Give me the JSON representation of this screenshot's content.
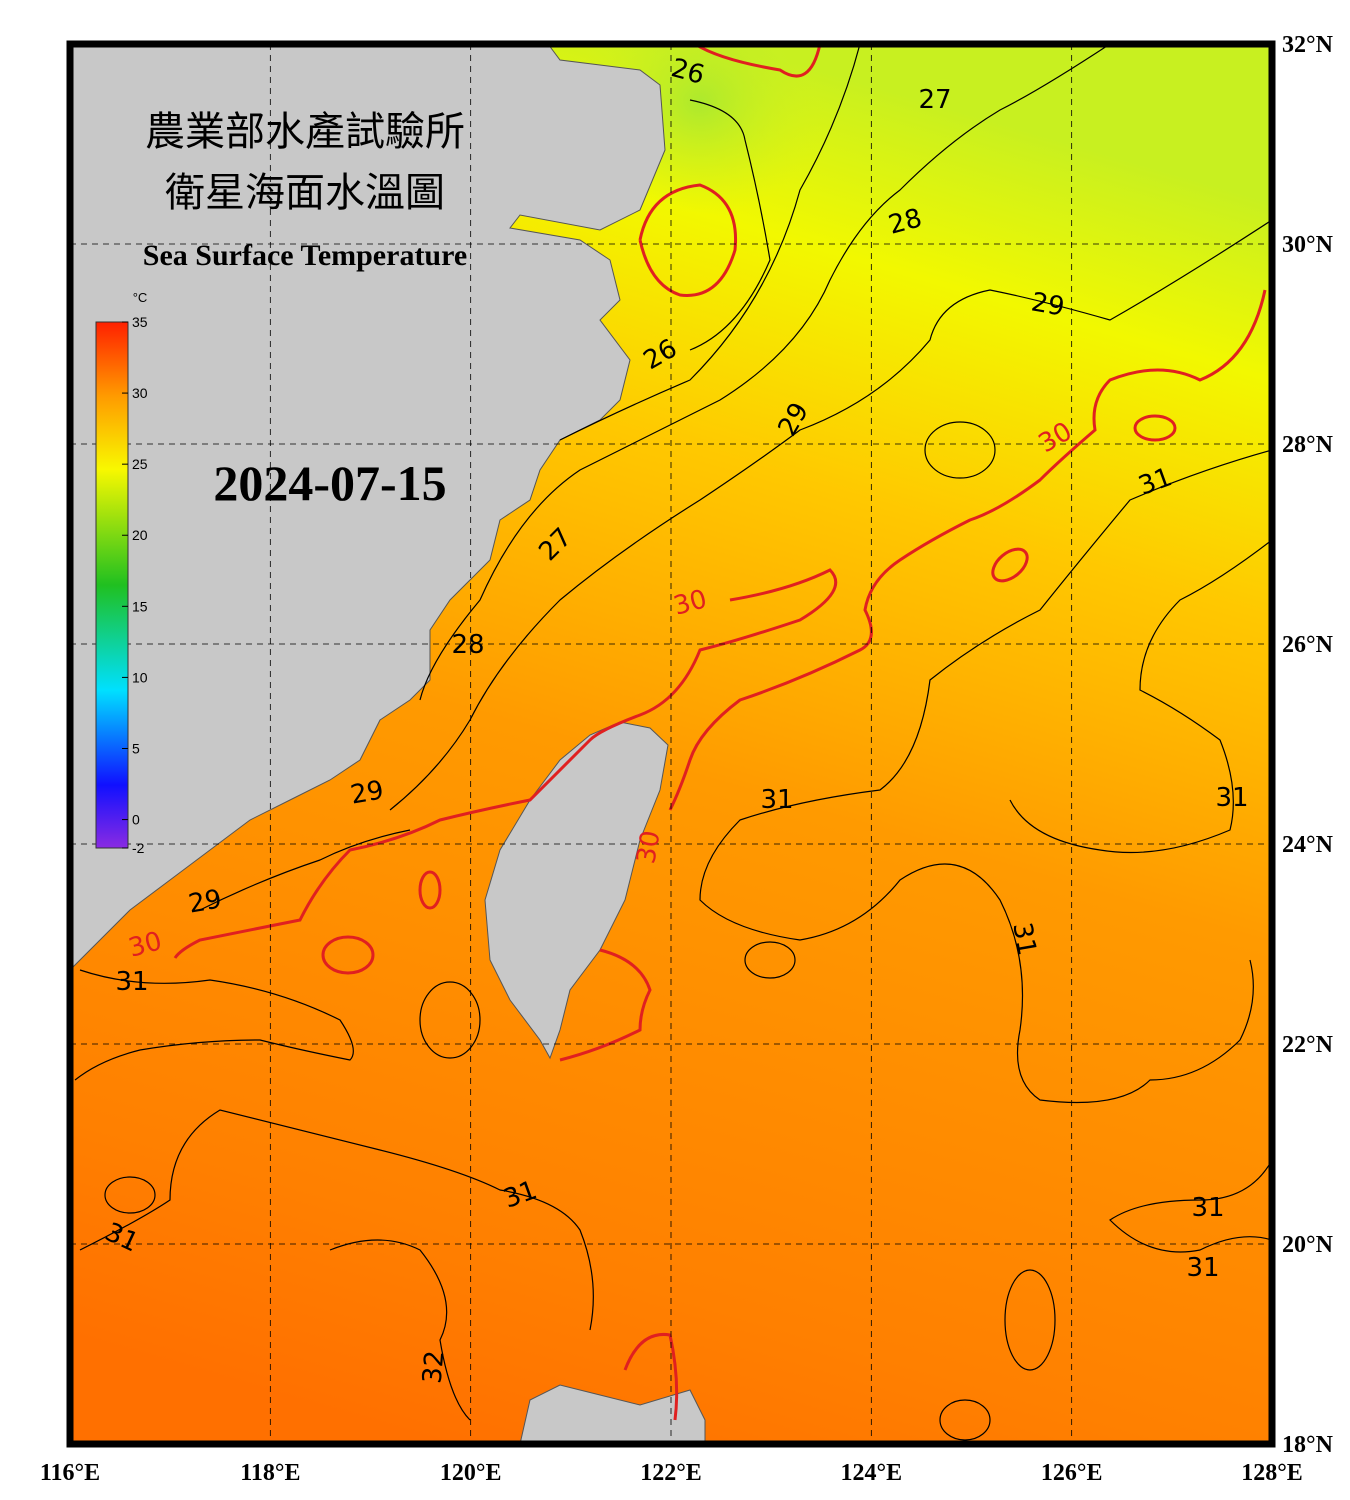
{
  "header": {
    "title_line_1": "農業部水產試驗所",
    "title_line_2": "衛星海面水溫圖",
    "title_en": "Sea Surface Temperature",
    "date": "2024-07-15"
  },
  "colorbar": {
    "unit": "°C",
    "range": [
      -2,
      35
    ],
    "ticks": [
      35,
      30,
      25,
      20,
      15,
      10,
      5,
      0,
      -2
    ]
  },
  "map": {
    "lon_range": [
      116,
      128
    ],
    "lat_range": [
      18,
      32
    ],
    "lon_ticks": [
      {
        "value": 116,
        "label": "116°E"
      },
      {
        "value": 118,
        "label": "118°E"
      },
      {
        "value": 120,
        "label": "120°E"
      },
      {
        "value": 122,
        "label": "122°E"
      },
      {
        "value": 124,
        "label": "124°E"
      },
      {
        "value": 126,
        "label": "126°E"
      },
      {
        "value": 128,
        "label": "128°E"
      }
    ],
    "lat_ticks": [
      {
        "value": 32,
        "label": "32°N"
      },
      {
        "value": 30,
        "label": "30°N"
      },
      {
        "value": 28,
        "label": "28°N"
      },
      {
        "value": 26,
        "label": "26°N"
      },
      {
        "value": 24,
        "label": "24°N"
      },
      {
        "value": 22,
        "label": "22°N"
      },
      {
        "value": 20,
        "label": "20°N"
      },
      {
        "value": 18,
        "label": "18°N"
      }
    ],
    "contour_labels": [
      26,
      27,
      28,
      29,
      26,
      29,
      30,
      31,
      27,
      30,
      28,
      31,
      31,
      29,
      30,
      29,
      30,
      31,
      31,
      31,
      31,
      31,
      31,
      32
    ]
  }
}
